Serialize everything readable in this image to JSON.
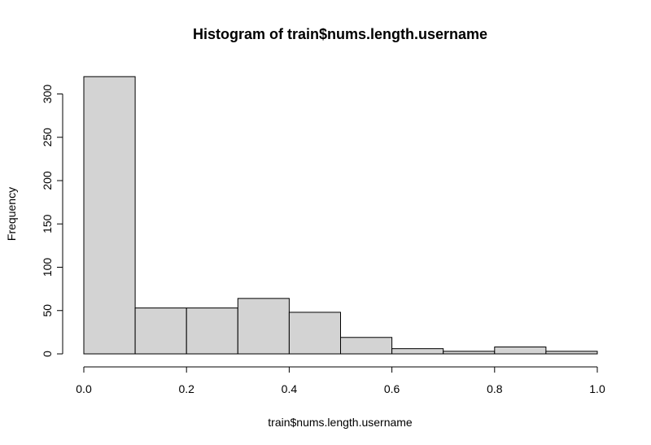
{
  "chart_data": {
    "type": "bar",
    "title": "Histogram of train$nums.length.username",
    "xlabel": "train$nums.length.username",
    "ylabel": "Frequency",
    "bins": [
      {
        "from": 0.0,
        "to": 0.1,
        "count": 320
      },
      {
        "from": 0.1,
        "to": 0.2,
        "count": 53
      },
      {
        "from": 0.2,
        "to": 0.3,
        "count": 53
      },
      {
        "from": 0.3,
        "to": 0.4,
        "count": 64
      },
      {
        "from": 0.4,
        "to": 0.5,
        "count": 48
      },
      {
        "from": 0.5,
        "to": 0.6,
        "count": 19
      },
      {
        "from": 0.6,
        "to": 0.7,
        "count": 6
      },
      {
        "from": 0.7,
        "to": 0.8,
        "count": 3
      },
      {
        "from": 0.8,
        "to": 0.9,
        "count": 8
      },
      {
        "from": 0.9,
        "to": 1.0,
        "count": 3
      }
    ],
    "xlim": [
      0,
      1
    ],
    "ylim": [
      0,
      300
    ],
    "x_ticks": [
      "0.0",
      "0.2",
      "0.4",
      "0.6",
      "0.8",
      "1.0"
    ],
    "y_ticks": [
      "0",
      "50",
      "100",
      "150",
      "200",
      "250",
      "300"
    ],
    "bar_color": "#d3d3d3",
    "grid": false
  }
}
